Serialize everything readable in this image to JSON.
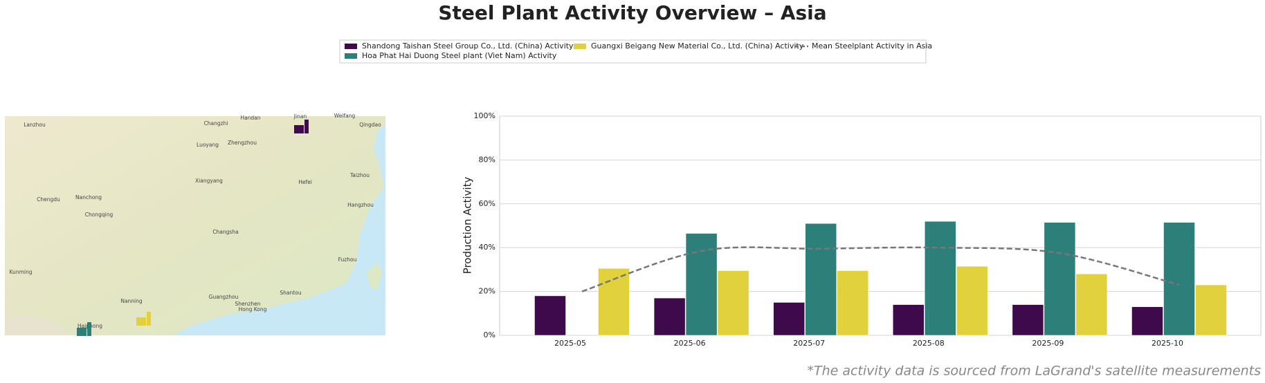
{
  "chart_data": {
    "type": "bar",
    "title": "Steel Plant Activity Overview – Asia",
    "y_label": "Production Activity",
    "footnote": "*The activity data is sourced from LaGrand's satellite measurements",
    "categories": [
      "2025-05",
      "2025-06",
      "2025-07",
      "2025-08",
      "2025-09",
      "2025-10"
    ],
    "series": [
      {
        "name": "Shandong Taishan Steel Group Co., Ltd. (China) Activity",
        "color": "#3f0a4b",
        "values": [
          18,
          17,
          15,
          14,
          14,
          13
        ]
      },
      {
        "name": "Hoa Phat Hai Duong Steel plant (Viet Nam) Activity",
        "color": "#2c8079",
        "values": [
          null,
          46.5,
          51,
          52,
          51.5,
          51.5
        ]
      },
      {
        "name": "Guangxi Beigang New Material Co., Ltd. (China) Activity",
        "color": "#e1d23d",
        "values": [
          30.5,
          29.5,
          29.5,
          31.5,
          28,
          23
        ]
      },
      {
        "name": "Mean Steelplant Activity in Asia",
        "type": "line",
        "color": "#777777",
        "values": [
          20,
          38.5,
          39.5,
          40,
          37.5,
          23
        ]
      }
    ],
    "ylim": [
      0,
      100
    ],
    "yticks": [
      {
        "value": 0,
        "label": "0%"
      },
      {
        "value": 20,
        "label": "20%"
      },
      {
        "value": 40,
        "label": "40%"
      },
      {
        "value": 60,
        "label": "60%"
      },
      {
        "value": 80,
        "label": "80%"
      },
      {
        "value": 100,
        "label": "100%"
      }
    ],
    "grid": true,
    "legend": "top"
  },
  "map": {
    "labels": [
      "Lanzhou",
      "Changzhi",
      "Handan",
      "Jinan",
      "Weifang",
      "Qingdao",
      "Luoyang",
      "Zhengzhou",
      "Hefei",
      "Chengdu",
      "Nanchong",
      "Chongqing",
      "Changsha",
      "Nanning",
      "Guangzhou",
      "Shenzhen",
      "Hong Kong",
      "Fuzhou",
      "Kunming",
      "Haiphong",
      "Xiangyang",
      "Hangzhou",
      "Taizhou",
      "Shantou"
    ]
  }
}
